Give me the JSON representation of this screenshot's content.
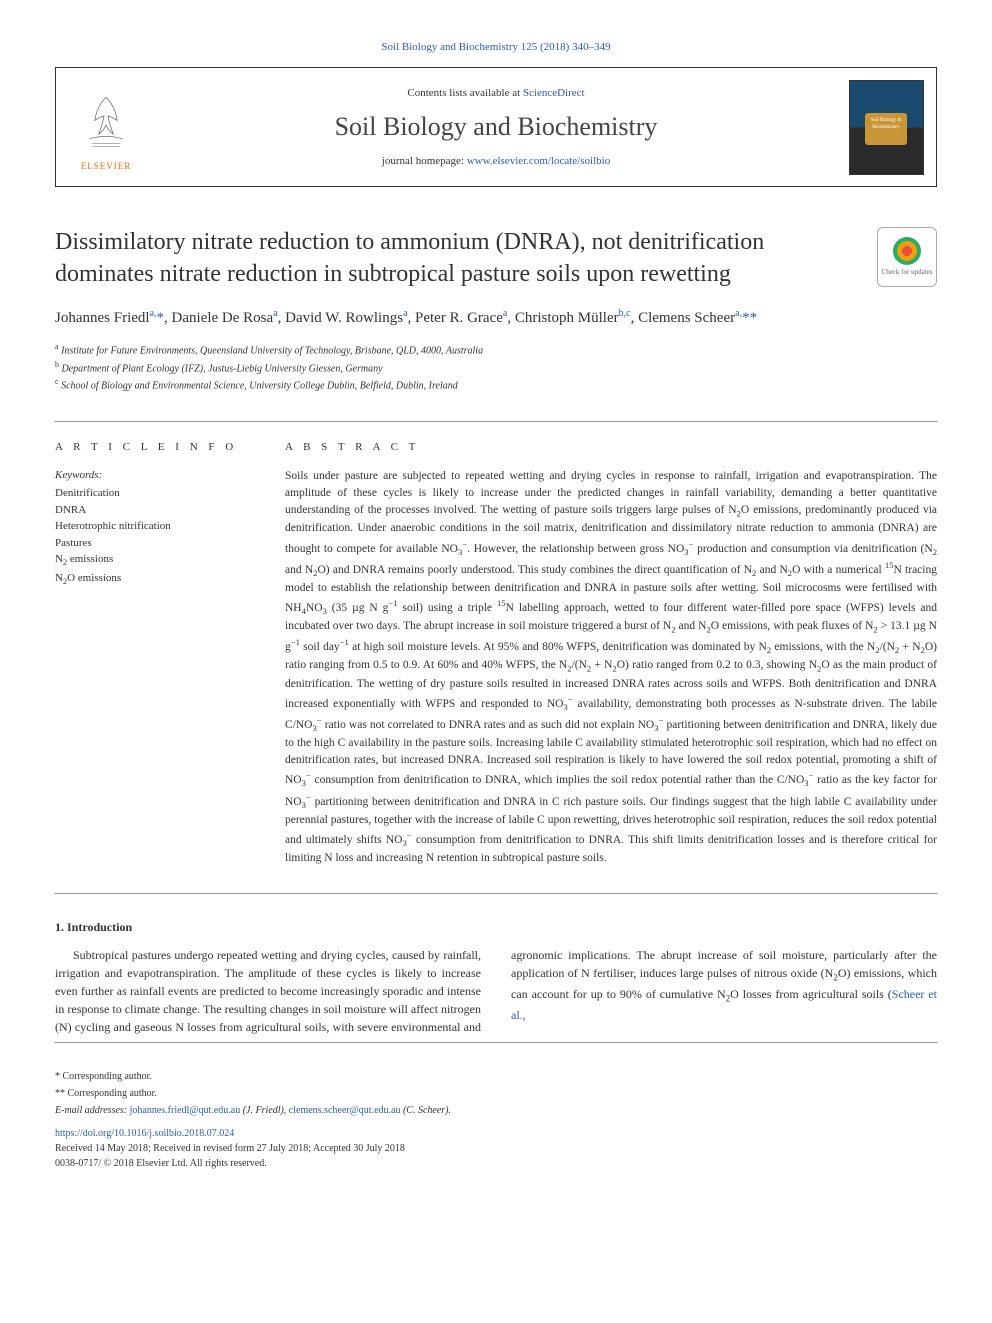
{
  "top_citation": "Soil Biology and Biochemistry 125 (2018) 340–349",
  "header": {
    "contents_prefix": "Contents lists available at ",
    "contents_link": "ScienceDirect",
    "journal_name": "Soil Biology and Biochemistry",
    "homepage_prefix": "journal homepage: ",
    "homepage_link": "www.elsevier.com/locate/soilbio",
    "elsevier_label": "ELSEVIER",
    "cover_badge": "Soil Biology & Biochemistry"
  },
  "check_updates_label": "Check for updates",
  "title": "Dissimilatory nitrate reduction to ammonium (DNRA), not denitrification dominates nitrate reduction in subtropical pasture soils upon rewetting",
  "authors_html": "Johannes Friedl<sup>a,</sup><span class='ast'>*</span>, Daniele De Rosa<sup>a</sup>, David W. Rowlings<sup>a</sup>, Peter R. Grace<sup>a</sup>, Christoph Müller<sup>b,c</sup>, Clemens Scheer<sup>a,</sup><span class='ast'>**</span>",
  "affiliations": [
    "a|Institute for Future Environments, Queensland University of Technology, Brisbane, QLD, 4000, Australia",
    "b|Department of Plant Ecology (IFZ), Justus-Liebig University Giessen, Germany",
    "c|School of Biology and Environmental Science, University College Dublin, Belfield, Dublin, Ireland"
  ],
  "article_info_head": "A R T I C L E  I N F O",
  "abstract_head": "A B S T R A C T",
  "keywords_label": "Keywords:",
  "keywords": [
    "Denitrification",
    "DNRA",
    "Heterotrophic nitrification",
    "Pastures",
    "N₂ emissions",
    "N₂O emissions"
  ],
  "abstract": "Soils under pasture are subjected to repeated wetting and drying cycles in response to rainfall, irrigation and evapotranspiration. The amplitude of these cycles is likely to increase under the predicted changes in rainfall variability, demanding a better quantitative understanding of the processes involved. The wetting of pasture soils triggers large pulses of N₂O emissions, predominantly produced via denitrification. Under anaerobic conditions in the soil matrix, denitrification and dissimilatory nitrate reduction to ammonia (DNRA) are thought to compete for available NO₃⁻. However, the relationship between gross NO₃⁻ production and consumption via denitrification (N₂ and N₂O) and DNRA remains poorly understood. This study combines the direct quantification of N₂ and N₂O with a numerical ¹⁵N tracing model to establish the relationship between denitrification and DNRA in pasture soils after wetting. Soil microcosms were fertilised with NH₄NO₃ (35 µg N g⁻¹ soil) using a triple ¹⁵N labelling approach, wetted to four different water-filled pore space (WFPS) levels and incubated over two days. The abrupt increase in soil moisture triggered a burst of N₂ and N₂O emissions, with peak fluxes of N₂ > 13.1 µg N g⁻¹ soil day⁻¹ at high soil moisture levels. At 95% and 80% WFPS, denitrification was dominated by N₂ emissions, with the N₂/(N₂ + N₂O) ratio ranging from 0.5 to 0.9. At 60% and 40% WFPS, the N₂/(N₂ + N₂O) ratio ranged from 0.2 to 0.3, showing N₂O as the main product of denitrification. The wetting of dry pasture soils resulted in increased DNRA rates across soils and WFPS. Both denitrification and DNRA increased exponentially with WFPS and responded to NO₃⁻ availability, demonstrating both processes as N-substrate driven. The labile C/NO₃⁻ ratio was not correlated to DNRA rates and as such did not explain NO₃⁻ partitioning between denitrification and DNRA, likely due to the high C availability in the pasture soils. Increasing labile C availability stimulated heterotrophic soil respiration, which had no effect on denitrification rates, but increased DNRA. Increased soil respiration is likely to have lowered the soil redox potential, promoting a shift of NO₃⁻ consumption from denitrification to DNRA, which implies the soil redox potential rather than the C/NO₃⁻ ratio as the key factor for NO₃⁻ partitioning between denitrification and DNRA in C rich pasture soils. Our findings suggest that the high labile C availability under perennial pastures, together with the increase of labile C upon rewetting, drives heterotrophic soil respiration, reduces the soil redox potential and ultimately shifts NO₃⁻ consumption from denitrification to DNRA. This shift limits denitrification losses and is therefore critical for limiting N loss and increasing N retention in subtropical pasture soils.",
  "intro": {
    "head": "1. Introduction",
    "para1": "Subtropical pastures undergo repeated wetting and drying cycles, caused by rainfall, irrigation and evapotranspiration. The amplitude of these cycles is likely to increase even further as rainfall events are predicted to become increasingly sporadic and intense in response to",
    "para2_prefix": "climate change. The resulting changes in soil moisture will affect nitrogen (N) cycling and gaseous N losses from agricultural soils, with severe environmental and agronomic implications. The abrupt increase of soil moisture, particularly after the application of N fertiliser, induces large pulses of nitrous oxide (N₂O) emissions, which can account for up to 90% of cumulative N₂O losses from agricultural soils (",
    "para2_link": "Scheer et al.,"
  },
  "footer": {
    "corr1": "* Corresponding author.",
    "corr2": "** Corresponding author.",
    "emails_label": "E-mail addresses: ",
    "email1": "johannes.friedl@qut.edu.au",
    "email1_name": " (J. Friedl), ",
    "email2": "clemens.scheer@qut.edu.au",
    "email2_name": " (C. Scheer).",
    "doi": "https://doi.org/10.1016/j.soilbio.2018.07.024",
    "received": "Received 14 May 2018; Received in revised form 27 July 2018; Accepted 30 July 2018",
    "copyright": "0038-0717/ © 2018 Elsevier Ltd. All rights reserved."
  },
  "colors": {
    "link": "#2a5db0",
    "elsevier_orange": "#ff6600",
    "text": "#333333",
    "rule": "#999999"
  }
}
